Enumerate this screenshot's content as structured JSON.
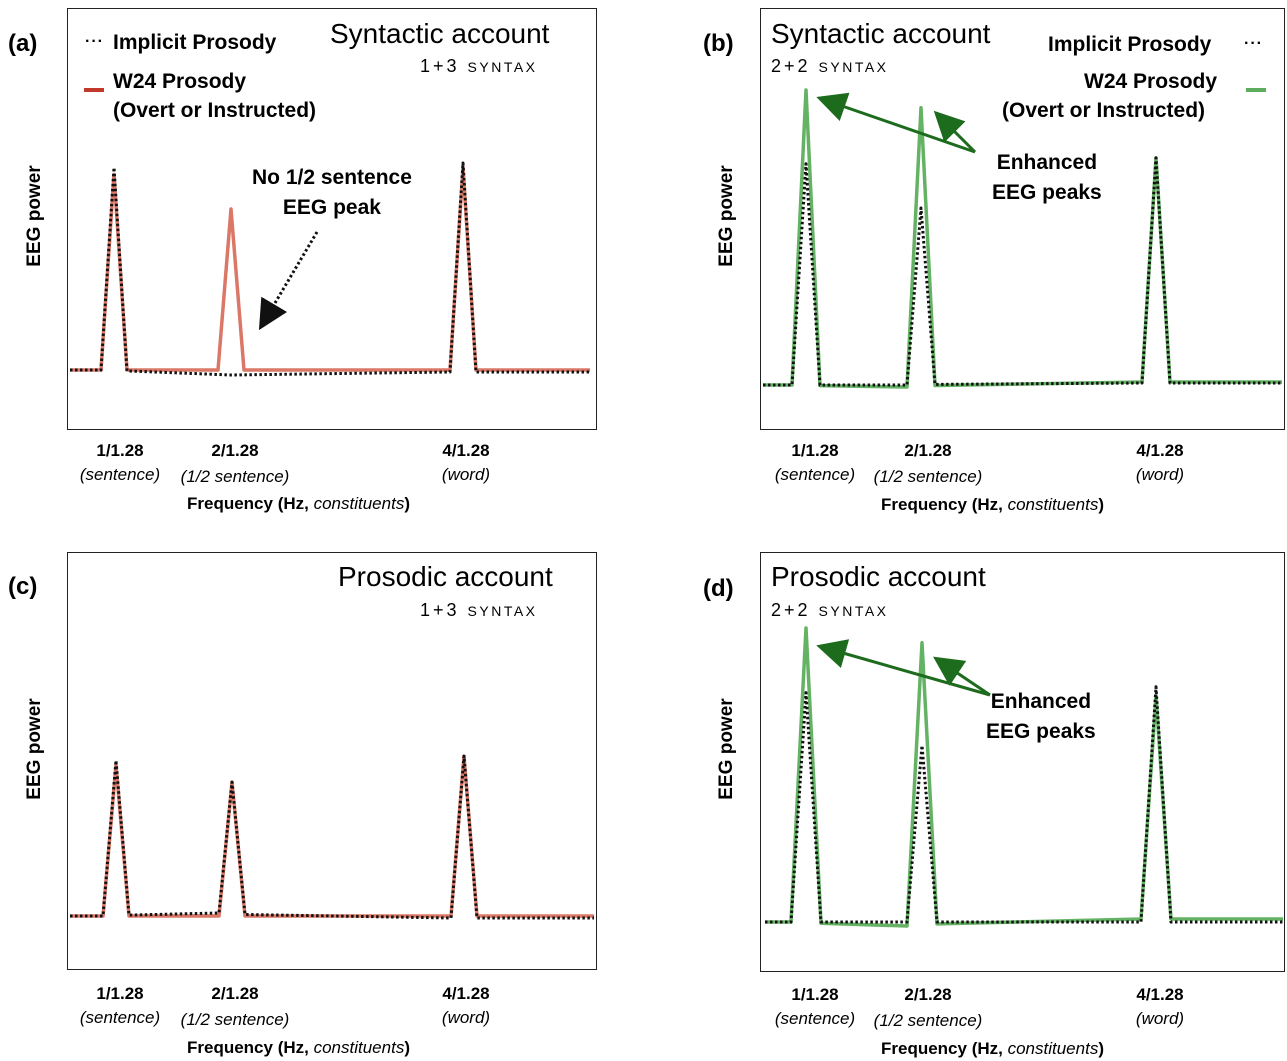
{
  "colors": {
    "w24_red": "#d9705f",
    "w24_green": "#5cae5c",
    "implicit": "#111111",
    "arrow_green": "#1d6b1d"
  },
  "common": {
    "ylabel": "EEG power",
    "xlabel_prefix": "Frequency (Hz, ",
    "xlabel_em": "constituents",
    "xlabel_suffix": ")",
    "ticks": [
      {
        "label": "1/1.28",
        "sub": "(sentence)"
      },
      {
        "label": "2/1.28",
        "sub": "(1/2 sentence)"
      },
      {
        "label": "4/1.28",
        "sub": "(word)"
      }
    ]
  },
  "legend": {
    "implicit_dots": "···",
    "implicit_label": "Implicit Prosody",
    "w24_line1": "W24 Prosody",
    "w24_line2": "(Overt or Instructed)"
  },
  "panels": {
    "a": {
      "letter": "(a)",
      "title": "Syntactic account",
      "sub_num": "1+3 ",
      "sub_word": "Syntax",
      "annot_line1": "No 1/2 sentence",
      "annot_line2": "EEG peak"
    },
    "b": {
      "letter": "(b)",
      "title": "Syntactic account",
      "sub_num": "2+2 ",
      "sub_word": "Syntax",
      "annot_line1": "Enhanced",
      "annot_line2": "EEG peaks"
    },
    "c": {
      "letter": "(c)",
      "title": "Prosodic account",
      "sub_num": "1+3 ",
      "sub_word": "Syntax"
    },
    "d": {
      "letter": "(d)",
      "title": "Prosodic account",
      "sub_num": "2+2 ",
      "sub_word": "Syntax",
      "annot_line1": "Enhanced",
      "annot_line2": "EEG peaks"
    }
  },
  "chart_data": [
    {
      "panel": "a",
      "type": "line",
      "title": "Syntactic account",
      "subtitle": "1+3 Syntax",
      "xlabel": "Frequency (Hz, constituents)",
      "ylabel": "EEG power",
      "x_ticks": [
        "1/1.28",
        "2/1.28",
        "4/1.28"
      ],
      "ylim": [
        0,
        1
      ],
      "series": [
        {
          "name": "Implicit Prosody",
          "style": "dotted",
          "color": "#111111",
          "peaks": {
            "1/1.28": 0.88,
            "2/1.28": 0.0,
            "4/1.28": 0.9
          }
        },
        {
          "name": "W24 Prosody (Overt or Instructed)",
          "style": "solid",
          "color": "#d9705f",
          "peaks": {
            "1/1.28": 0.85,
            "2/1.28": 0.7,
            "4/1.28": 0.88
          }
        }
      ]
    },
    {
      "panel": "b",
      "type": "line",
      "title": "Syntactic account",
      "subtitle": "2+2 Syntax",
      "xlabel": "Frequency (Hz, constituents)",
      "ylabel": "EEG power",
      "x_ticks": [
        "1/1.28",
        "2/1.28",
        "4/1.28"
      ],
      "ylim": [
        0,
        1
      ],
      "series": [
        {
          "name": "Implicit Prosody",
          "style": "dotted",
          "color": "#111111",
          "peaks": {
            "1/1.28": 0.75,
            "2/1.28": 0.6,
            "4/1.28": 0.77
          }
        },
        {
          "name": "W24 Prosody (Overt or Instructed)",
          "style": "solid",
          "color": "#5cae5c",
          "peaks": {
            "1/1.28": 1.0,
            "2/1.28": 0.94,
            "4/1.28": 0.77
          }
        }
      ]
    },
    {
      "panel": "c",
      "type": "line",
      "title": "Prosodic account",
      "subtitle": "1+3 Syntax",
      "xlabel": "Frequency (Hz, constituents)",
      "ylabel": "EEG power",
      "x_ticks": [
        "1/1.28",
        "2/1.28",
        "4/1.28"
      ],
      "ylim": [
        0,
        1
      ],
      "series": [
        {
          "name": "Implicit Prosody",
          "style": "dotted",
          "color": "#111111",
          "peaks": {
            "1/1.28": 0.72,
            "2/1.28": 0.62,
            "4/1.28": 0.74
          }
        },
        {
          "name": "W24 Prosody (Overt or Instructed)",
          "style": "solid",
          "color": "#d9705f",
          "peaks": {
            "1/1.28": 0.7,
            "2/1.28": 0.62,
            "4/1.28": 0.74
          }
        }
      ]
    },
    {
      "panel": "d",
      "type": "line",
      "title": "Prosodic account",
      "subtitle": "2+2 Syntax",
      "xlabel": "Frequency (Hz, constituents)",
      "ylabel": "EEG power",
      "x_ticks": [
        "1/1.28",
        "2/1.28",
        "4/1.28"
      ],
      "ylim": [
        0,
        1
      ],
      "series": [
        {
          "name": "Implicit Prosody",
          "style": "dotted",
          "color": "#111111",
          "peaks": {
            "1/1.28": 0.78,
            "2/1.28": 0.6,
            "4/1.28": 0.8
          }
        },
        {
          "name": "W24 Prosody (Overt or Instructed)",
          "style": "solid",
          "color": "#5cae5c",
          "peaks": {
            "1/1.28": 1.0,
            "2/1.28": 0.95,
            "4/1.28": 0.77
          }
        }
      ]
    }
  ]
}
